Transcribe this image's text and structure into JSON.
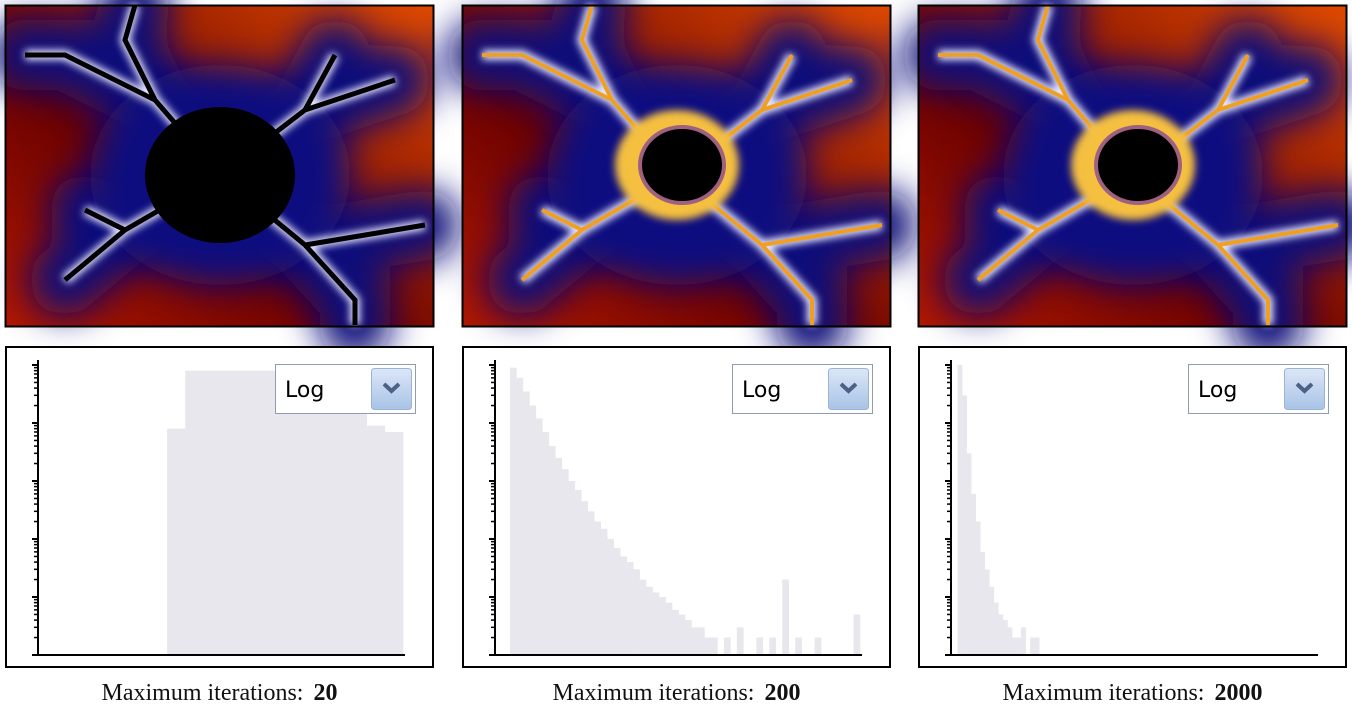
{
  "panels": [
    {
      "caption_label": "Maximum iterations:",
      "max_iterations": 20,
      "scale": "Log",
      "histogram": {
        "log_scale": true,
        "ylim": [
          1,
          100000
        ],
        "yticks": [
          1,
          10,
          100,
          1000,
          10000,
          100000
        ],
        "color": "#e9e7ee",
        "values": [
          0,
          0,
          0,
          0,
          0,
          0,
          0,
          8000,
          80000,
          80000,
          80000,
          80000,
          80000,
          80000,
          80000,
          80000,
          80000,
          80000,
          9000,
          7000
        ]
      }
    },
    {
      "caption_label": "Maximum iterations:",
      "max_iterations": 200,
      "scale": "Log",
      "histogram": {
        "log_scale": true,
        "ylim": [
          1,
          100000
        ],
        "yticks": [
          1,
          10,
          100,
          1000,
          10000,
          100000
        ],
        "color": "#e9e7ee",
        "values": [
          0,
          0,
          90000,
          60000,
          35000,
          20000,
          12000,
          7000,
          4000,
          2500,
          1600,
          1000,
          700,
          450,
          300,
          200,
          150,
          100,
          70,
          50,
          40,
          30,
          20,
          15,
          12,
          10,
          8,
          6,
          5,
          4,
          3,
          3,
          2,
          2,
          0,
          2,
          0,
          3,
          0,
          0,
          2,
          0,
          2,
          0,
          20,
          0,
          2,
          0,
          0,
          2,
          0,
          0,
          0,
          0,
          0,
          5
        ]
      }
    },
    {
      "caption_label": "Maximum iterations:",
      "max_iterations": 2000,
      "scale": "Log",
      "histogram": {
        "log_scale": true,
        "ylim": [
          1,
          100000
        ],
        "yticks": [
          1,
          10,
          100,
          1000,
          10000,
          100000
        ],
        "color": "#e9e7ee",
        "values": [
          0,
          100000,
          30000,
          3000,
          600,
          200,
          60,
          30,
          15,
          8,
          5,
          4,
          3,
          2,
          2,
          3,
          0,
          2,
          2,
          0,
          0,
          0,
          0,
          0,
          0,
          0,
          0,
          0,
          0,
          0,
          0,
          0,
          0,
          0,
          0,
          0,
          0,
          0,
          0,
          0,
          0,
          0,
          0,
          0,
          0,
          0,
          0,
          0,
          0,
          0,
          0,
          0,
          0,
          0,
          0,
          0,
          0,
          0,
          0,
          0,
          0,
          0,
          0,
          0,
          0,
          0,
          0,
          0,
          0,
          0,
          0,
          0,
          0,
          0,
          0,
          0,
          0,
          0,
          0,
          0
        ]
      }
    }
  ]
}
